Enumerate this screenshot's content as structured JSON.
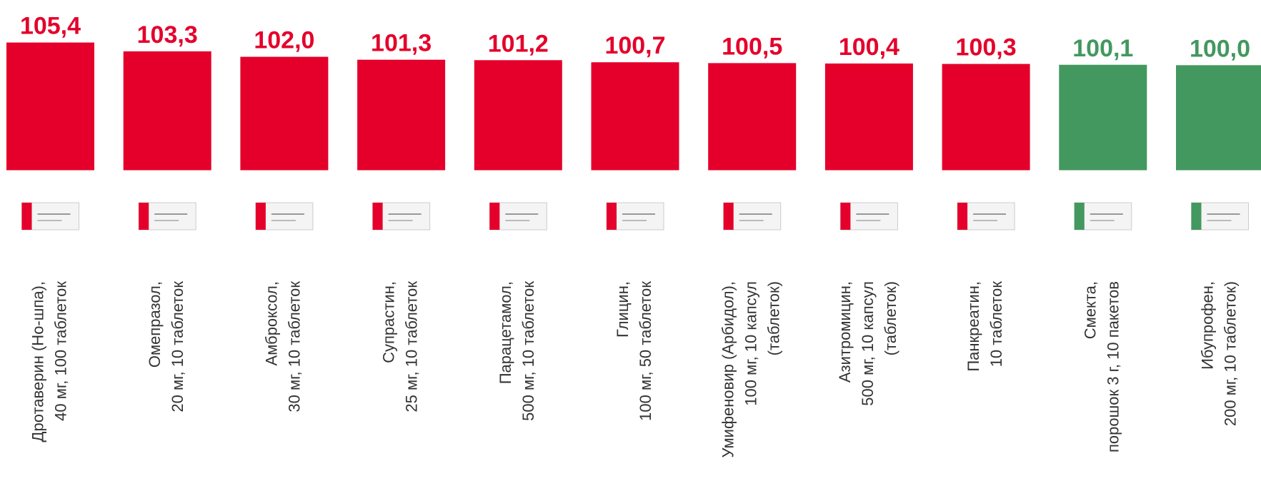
{
  "chart_data": {
    "type": "bar",
    "categories": [
      [
        "Дротаверин (Но-шпа),",
        "40 мг, 100 таблеток"
      ],
      [
        "Омепразол,",
        "20 мг, 10 таблеток"
      ],
      [
        "Амброксол,",
        "30 мг, 10 таблеток"
      ],
      [
        "Супрастин,",
        "25 мг, 10 таблеток"
      ],
      [
        "Парацетамол,",
        "500 мг, 10 таблеток"
      ],
      [
        "Глицин,",
        "100 мг, 50 таблеток"
      ],
      [
        "Умифеновир (Арбидол),",
        "100 мг, 10 капсул",
        "(таблеток)"
      ],
      [
        "Азитромицин,",
        "500 мг, 10 капсул",
        "(таблеток)"
      ],
      [
        "Панкреатин,",
        "10 таблеток"
      ],
      [
        "Смекта,",
        "порошок 3 г, 10 пакетов"
      ],
      [
        "Ибупрофен,",
        "200 мг, 10 таблеток)"
      ]
    ],
    "values": [
      105.4,
      103.3,
      102.0,
      101.3,
      101.2,
      100.7,
      100.5,
      100.4,
      100.3,
      100.1,
      100.0
    ],
    "value_labels": [
      "105,4",
      "103,3",
      "102,0",
      "101,3",
      "101,2",
      "100,7",
      "100,5",
      "100,4",
      "100,3",
      "100,1",
      "100,0"
    ],
    "colors": [
      "#e4002b",
      "#e4002b",
      "#e4002b",
      "#e4002b",
      "#e4002b",
      "#e4002b",
      "#e4002b",
      "#e4002b",
      "#e4002b",
      "#43985f",
      "#43985f"
    ],
    "ylim": [
      75,
      110
    ]
  }
}
